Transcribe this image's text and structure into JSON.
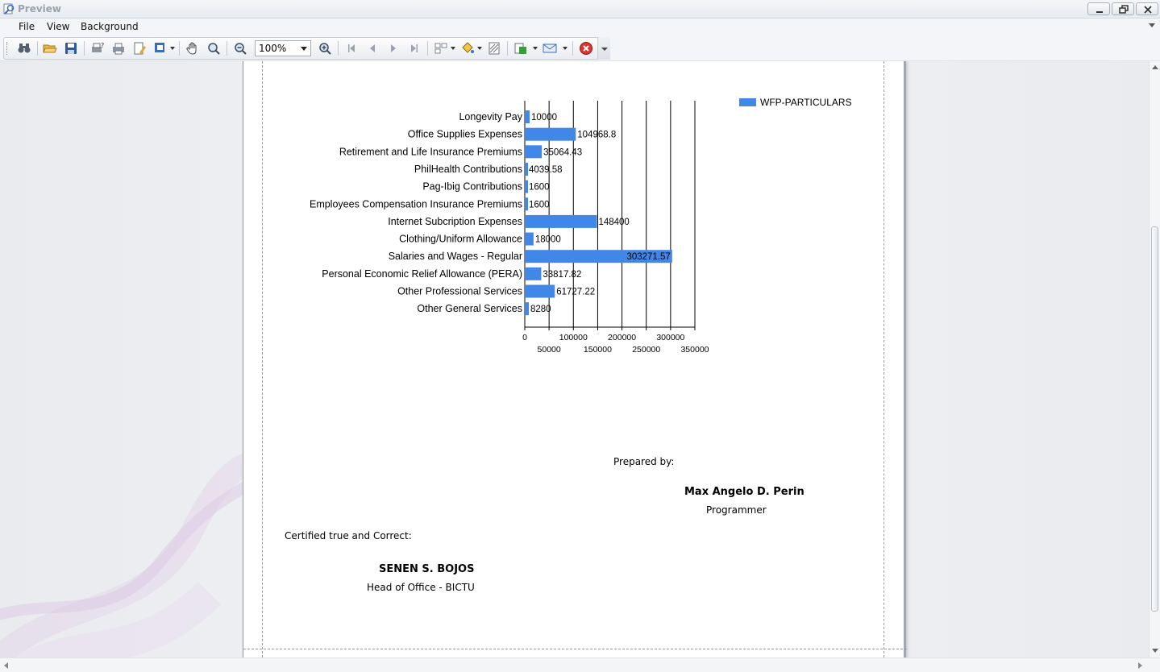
{
  "window": {
    "title": "Preview"
  },
  "menu": {
    "items": [
      "File",
      "View",
      "Background"
    ]
  },
  "toolbar": {
    "zoom_value": "100%"
  },
  "chart_data": {
    "type": "bar",
    "orientation": "horizontal",
    "categories": [
      "Longevity Pay",
      "Office Supplies Expenses",
      "Retirement and Life Insurance Premiums",
      "PhilHealth Contributions",
      "Pag-Ibig Contributions",
      "Employees Compensation Insurance Premiums",
      "Internet Subcription Expenses",
      "Clothing/Uniform Allowance",
      "Salaries and Wages - Regular",
      "Personal Economic Relief Allowance (PERA)",
      "Other Professional Services",
      "Other General Services"
    ],
    "series": [
      {
        "name": "WFP-PARTICULARS",
        "color": "#4187e8",
        "values": [
          10000,
          104968.8,
          35064.43,
          4039.58,
          1600,
          1600,
          148400,
          18000,
          303271.57,
          33817.82,
          61727.22,
          8280
        ],
        "labels": [
          "10000",
          "104968.8",
          "35064.43",
          "4039.58",
          "1600",
          "1600",
          "148400",
          "18000",
          "303271.57",
          "33817.82",
          "61727.22",
          "8280"
        ]
      }
    ],
    "xlim": [
      0,
      350000
    ],
    "xticks": [
      0,
      50000,
      100000,
      150000,
      200000,
      250000,
      300000,
      350000
    ],
    "xtick_labels": [
      "0",
      "50000",
      "100000",
      "150000",
      "200000",
      "250000",
      "300000",
      "350000"
    ],
    "grid": true,
    "legend": "top-right"
  },
  "signatures": {
    "prepared_label": "Prepared by:",
    "preparer_name": "Max Angelo D. Perin",
    "preparer_title": "Programmer",
    "certified_label": "Certified true and Correct:",
    "certifier_name": "SENEN S. BOJOS",
    "certifier_title": "Head of Office - BICTU"
  }
}
